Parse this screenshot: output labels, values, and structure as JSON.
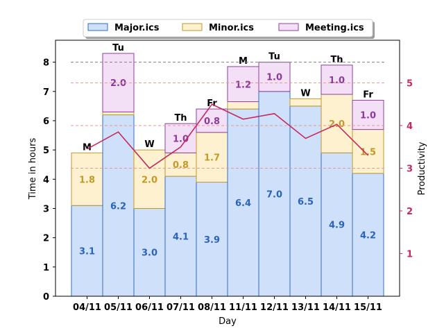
{
  "chart_data": {
    "type": "bar",
    "stacked": true,
    "categories": [
      "04/11",
      "05/11",
      "06/11",
      "07/11",
      "08/11",
      "11/11",
      "12/11",
      "13/11",
      "14/11",
      "15/11"
    ],
    "day_labels": [
      "M",
      "Tu",
      "W",
      "Th",
      "Fr",
      "M",
      "Tu",
      "W",
      "Th",
      "Fr"
    ],
    "series": [
      {
        "name": "Major.ics",
        "values": [
          3.1,
          6.2,
          3.0,
          4.1,
          3.9,
          6.4,
          7.0,
          6.5,
          4.9,
          4.2
        ],
        "fill": "#cfe0fb",
        "edge": "#2f6cc2",
        "label_color": "#2a64b8"
      },
      {
        "name": "Minor.ics",
        "values": [
          1.8,
          0.1,
          2.0,
          0.8,
          1.7,
          0.25,
          0.0,
          0.25,
          2.0,
          1.5
        ],
        "fill": "#fdf1cf",
        "edge": "#c19730",
        "label_color": "#c19a2a"
      },
      {
        "name": "Meeting.ics",
        "values": [
          0.0,
          2.0,
          0.0,
          1.0,
          0.8,
          1.2,
          1.0,
          0.0,
          1.0,
          1.0
        ],
        "fill": "#f3e0f6",
        "edge": "#8f3f9e",
        "label_color": "#8d3a9a"
      }
    ],
    "segment_labels": [
      [
        "3.1",
        "6.2",
        "3.0",
        "4.1",
        "3.9",
        "6.4",
        "7.0",
        "6.5",
        "4.9",
        "4.2"
      ],
      [
        "1.8",
        "",
        "2.0",
        "0.8",
        "1.7",
        "",
        "",
        "",
        "2.0",
        "1.5"
      ],
      [
        "",
        "2.0",
        "",
        "1.0",
        "0.8",
        "1.2",
        "1.0",
        "",
        "1.0",
        "1.0"
      ]
    ],
    "productivity": {
      "values": [
        3.45,
        3.85,
        3.0,
        3.5,
        4.5,
        4.15,
        4.28,
        3.7,
        4.03,
        3.3
      ],
      "color": "#c8285a",
      "ylim": [
        0,
        6.0
      ],
      "ticks": [
        "1",
        "2",
        "3",
        "4",
        "5"
      ]
    },
    "target_hours": 8,
    "xlabel": "Day",
    "ylabel": "Time in hours",
    "ylabel_right": "Productivity",
    "ylim": [
      0,
      8.75
    ],
    "yticks": [
      "0",
      "1",
      "2",
      "3",
      "4",
      "5",
      "6",
      "7",
      "8"
    ],
    "legend_position": "top-center"
  }
}
